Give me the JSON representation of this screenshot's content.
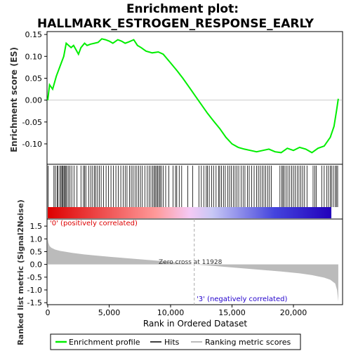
{
  "chart_data": {
    "type": "line",
    "title_line1": "Enrichment plot:",
    "title_line2": "HALLMARK_ESTROGEN_RESPONSE_EARLY",
    "top_panel": {
      "ylabel": "Enrichment score (ES)",
      "ylim": [
        -0.145,
        0.155
      ],
      "yticks": [
        0.15,
        0.1,
        0.05,
        0.0,
        -0.05,
        -0.1
      ],
      "ytick_labels": [
        "0.15",
        "0.10",
        "0.05",
        "0.00",
        "-0.05",
        "-0.10"
      ],
      "series_name": "Enrichment profile",
      "line_color": "#00ee00",
      "x": [
        0,
        150,
        400,
        700,
        900,
        1100,
        1300,
        1500,
        1700,
        1900,
        2100,
        2300,
        2500,
        2700,
        3000,
        3200,
        3500,
        3800,
        4100,
        4400,
        4700,
        5000,
        5300,
        5700,
        6000,
        6300,
        6600,
        7000,
        7300,
        7600,
        8000,
        8500,
        9000,
        9400,
        10000,
        10500,
        11000,
        11500,
        12000,
        12500,
        13000,
        13500,
        14000,
        14500,
        15000,
        15500,
        16000,
        16500,
        17000,
        17500,
        18000,
        18500,
        19000,
        19500,
        20000,
        20500,
        21000,
        21500,
        22000,
        22500,
        23000,
        23300,
        23500,
        23650
      ],
      "y": [
        0.0,
        0.035,
        0.025,
        0.055,
        0.07,
        0.085,
        0.1,
        0.13,
        0.125,
        0.12,
        0.125,
        0.115,
        0.105,
        0.12,
        0.13,
        0.125,
        0.128,
        0.13,
        0.132,
        0.14,
        0.138,
        0.135,
        0.13,
        0.138,
        0.135,
        0.13,
        0.133,
        0.138,
        0.125,
        0.12,
        0.112,
        0.108,
        0.11,
        0.105,
        0.085,
        0.068,
        0.05,
        0.03,
        0.01,
        -0.01,
        -0.03,
        -0.048,
        -0.065,
        -0.085,
        -0.1,
        -0.108,
        -0.112,
        -0.115,
        -0.118,
        -0.115,
        -0.112,
        -0.118,
        -0.12,
        -0.11,
        -0.115,
        -0.108,
        -0.112,
        -0.12,
        -0.11,
        -0.105,
        -0.085,
        -0.06,
        -0.025,
        0.003
      ]
    },
    "hits_panel": {
      "series_name": "Hits",
      "hit_ranks": [
        40,
        500,
        620,
        760,
        840,
        980,
        1080,
        1160,
        1240,
        1320,
        1400,
        1480,
        1560,
        1700,
        1820,
        1960,
        2150,
        2380,
        2700,
        2900,
        3000,
        3100,
        3350,
        3500,
        3650,
        3800,
        3900,
        4050,
        4200,
        4350,
        4550,
        4750,
        4950,
        5150,
        5350,
        5550,
        5750,
        5950,
        6150,
        6300,
        6450,
        6650,
        6800,
        6950,
        7100,
        7250,
        7400,
        7550,
        7700,
        7900,
        8100,
        8250,
        8400,
        8550,
        8650,
        8750,
        8850,
        8950,
        9050,
        9150,
        9250,
        9400,
        9600,
        9850,
        10200,
        10400,
        10500,
        10700,
        10900,
        11400,
        11800,
        12300,
        12500,
        12700,
        12900,
        13000,
        13150,
        13350,
        13500,
        13700,
        13900,
        14000,
        14150,
        14300,
        14450,
        14650,
        14800,
        14950,
        15100,
        15250,
        15400,
        15550,
        15750,
        15900,
        16050,
        16250,
        16400,
        16600,
        16800,
        17000,
        17150,
        17300,
        17450,
        17600,
        17750,
        17900,
        18050,
        18200,
        18900,
        19050,
        19150,
        19250,
        19400,
        19550,
        19700,
        19850,
        20000,
        20150,
        20300,
        20450,
        20600,
        20750,
        20900,
        21100,
        21600,
        21750,
        21850,
        22300,
        22500,
        22700,
        22850,
        23000,
        23100,
        23250,
        23400,
        23500,
        23600
      ],
      "colorbar_stops": [
        "#dd0000",
        "#ff9999",
        "#f5c9f5",
        "#c8c8f5",
        "#4444dd",
        "#2200bb"
      ]
    },
    "rank_panel": {
      "ylabel": "Ranked list metric (Signal2Noise)",
      "ylim": [
        -1.55,
        1.75
      ],
      "yticks": [
        1.5,
        1.0,
        0.5,
        0.0,
        -0.5,
        -1.0,
        -1.5
      ],
      "ytick_labels": [
        "1.5",
        "1.0",
        "0.5",
        "0.0",
        "-0.5",
        "-1.0",
        "-1.5"
      ],
      "series_name": "Ranking metric scores",
      "x": [
        0,
        50,
        150,
        300,
        600,
        1000,
        2000,
        3000,
        5000,
        7000,
        9000,
        11928,
        14000,
        17000,
        19000,
        20500,
        21500,
        22500,
        23000,
        23400,
        23550,
        23650
      ],
      "y": [
        1.0,
        0.85,
        0.72,
        0.65,
        0.58,
        0.53,
        0.45,
        0.39,
        0.3,
        0.22,
        0.14,
        0.0,
        -0.08,
        -0.2,
        -0.28,
        -0.35,
        -0.42,
        -0.52,
        -0.6,
        -0.75,
        -1.0,
        -1.45
      ],
      "zero_cross_label": "Zero cross at 11928",
      "zero_cross_rank": 11928,
      "pos_label": "'0' (positively correlated)",
      "neg_label": "'3' (negatively correlated)",
      "fill_color": "#bbbbbb"
    },
    "xlabel": "Rank in Ordered Dataset",
    "xlim": [
      0,
      24000
    ],
    "xticks": [
      0,
      5000,
      10000,
      15000,
      20000
    ],
    "xtick_labels": [
      "0",
      "5,000",
      "10,000",
      "15,000",
      "20,000"
    ],
    "legend": {
      "placement": "bottom",
      "items": [
        {
          "label": "Enrichment profile",
          "color": "#00ee00"
        },
        {
          "label": "Hits",
          "color": "#000000"
        },
        {
          "label": "Ranking metric scores",
          "color": "#bbbbbb"
        }
      ]
    }
  }
}
